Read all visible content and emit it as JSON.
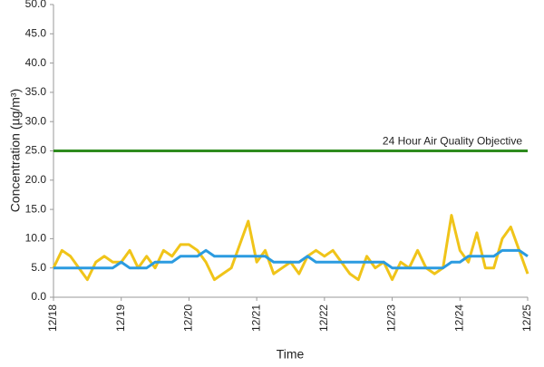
{
  "chart_data": {
    "type": "line",
    "y_label": "Concentration (µg/m³)",
    "x_label": "Time",
    "categories": [
      "12/18",
      null,
      null,
      null,
      null,
      null,
      null,
      null,
      "12/19",
      null,
      null,
      null,
      null,
      null,
      null,
      null,
      "12/20",
      null,
      null,
      null,
      null,
      null,
      null,
      null,
      "12/21",
      null,
      null,
      null,
      null,
      null,
      null,
      null,
      "12/22",
      null,
      null,
      null,
      null,
      null,
      null,
      null,
      "12/23",
      null,
      null,
      null,
      null,
      null,
      null,
      null,
      "12/24",
      null,
      null,
      null,
      null,
      null,
      null,
      null,
      "12/25"
    ],
    "series": [
      {
        "color": "#f0c419",
        "values": [
          5,
          8,
          7,
          5,
          3,
          6,
          7,
          6,
          6,
          8,
          5,
          7,
          5,
          8,
          7,
          9,
          9,
          8,
          6,
          3,
          4,
          5,
          9,
          13,
          6,
          8,
          4,
          5,
          6,
          4,
          7,
          8,
          7,
          8,
          6,
          4,
          3,
          7,
          5,
          6,
          3,
          6,
          5,
          8,
          5,
          4,
          5,
          14,
          8,
          6,
          11,
          5,
          5,
          10,
          12,
          8,
          4
        ]
      },
      {
        "color": "#2b9be0",
        "values": [
          5,
          5,
          5,
          5,
          5,
          5,
          5,
          5,
          6,
          5,
          5,
          5,
          6,
          6,
          6,
          7,
          7,
          7,
          8,
          7,
          7,
          7,
          7,
          7,
          7,
          7,
          6,
          6,
          6,
          6,
          7,
          6,
          6,
          6,
          6,
          6,
          6,
          6,
          6,
          6,
          5,
          5,
          5,
          5,
          5,
          5,
          5,
          6,
          6,
          7,
          7,
          7,
          7,
          8,
          8,
          8,
          7
        ]
      },
      {
        "name": "24 Hour Air Quality Objective",
        "color": "#2e8b1e",
        "values": [
          25,
          25,
          25,
          25,
          25,
          25,
          25,
          25,
          25,
          25,
          25,
          25,
          25,
          25,
          25,
          25,
          25,
          25,
          25,
          25,
          25,
          25,
          25,
          25,
          25,
          25,
          25,
          25,
          25,
          25,
          25,
          25,
          25,
          25,
          25,
          25,
          25,
          25,
          25,
          25,
          25,
          25,
          25,
          25,
          25,
          25,
          25,
          25,
          25,
          25,
          25,
          25,
          25,
          25,
          25,
          25,
          25
        ]
      }
    ],
    "ylim": [
      0,
      50
    ],
    "yticks": [
      {
        "value": 0,
        "label": "0.0"
      },
      {
        "value": 5,
        "label": "5.0"
      },
      {
        "value": 10,
        "label": "10.0"
      },
      {
        "value": 15,
        "label": "15.0"
      },
      {
        "value": 20,
        "label": "20.0"
      },
      {
        "value": 25,
        "label": "25.0"
      },
      {
        "value": 30,
        "label": "30.0"
      },
      {
        "value": 35,
        "label": "35.0"
      },
      {
        "value": 40,
        "label": "40.0"
      },
      {
        "value": 45,
        "label": "45.0"
      },
      {
        "value": 50,
        "label": "50.0"
      }
    ],
    "grid": false
  }
}
